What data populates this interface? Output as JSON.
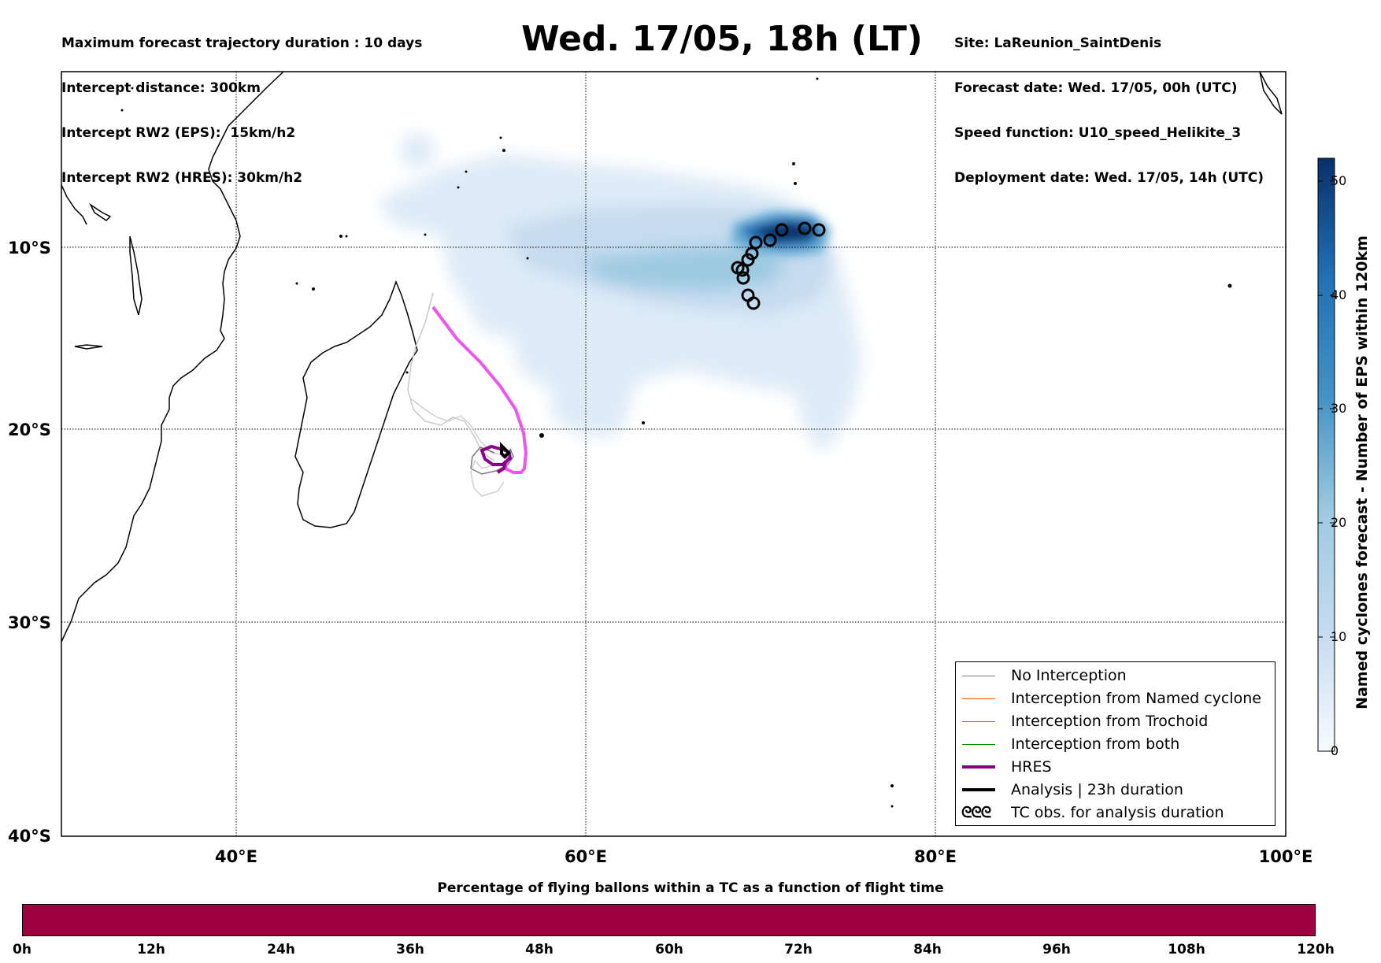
{
  "header": {
    "left_lines": [
      "Maximum forecast trajectory duration : 10 days",
      "Intercept distance: 300km",
      "Intercept RW2 (EPS):  15km/h2",
      "Intercept RW2 (HRES): 30km/h2"
    ],
    "title": "Wed. 17/05, 18h (LT)",
    "right_lines": [
      "Site: LaReunion_SaintDenis",
      "Forecast date: Wed. 17/05, 00h (UTC)",
      "Speed function: U10_speed_Helikite_3",
      "Deployment date: Wed. 17/05, 14h (UTC)"
    ]
  },
  "map": {
    "lon_range": [
      30,
      100
    ],
    "lat_range": [
      -40,
      0
    ],
    "lat_labels": [
      "10°S",
      "20°S",
      "30°S",
      "40°S"
    ],
    "lon_labels": [
      "40°E",
      "60°E",
      "80°E",
      "100°E"
    ],
    "density_color": "#08306b"
  },
  "legend": {
    "items": [
      {
        "label": "No Interception",
        "color": "#808080",
        "width": 1.3,
        "glyph": ""
      },
      {
        "label": "Interception from Named cyclone",
        "color": "#ff4500",
        "width": 1.3,
        "glyph": ""
      },
      {
        "label": "Interception from Trochoid",
        "color": "#808000",
        "width": 1.3,
        "glyph": ""
      },
      {
        "label": "Interception from both",
        "color": "#008000",
        "width": 1.3,
        "glyph": ""
      },
      {
        "label": "HRES",
        "color": "#800080",
        "width": 4,
        "glyph": ""
      },
      {
        "label": "Analysis | 23h duration",
        "color": "#000000",
        "width": 4,
        "glyph": ""
      },
      {
        "label": "TC obs. for analysis duration",
        "color": "#000000",
        "width": 0,
        "glyph": "ᘓᘓᘓ"
      }
    ]
  },
  "colorbar": {
    "title": "Named cyclones forecast - Number of EPS within 120km",
    "ticks": [
      "0",
      "10",
      "20",
      "30",
      "40",
      "50"
    ],
    "min": 0,
    "max": 52,
    "color_low": "#deebf7",
    "color_high": "#08306b"
  },
  "timebar": {
    "title": "Percentage of flying ballons within a TC as a function of flight time",
    "labels": [
      "0h",
      "12h",
      "24h",
      "36h",
      "48h",
      "60h",
      "72h",
      "84h",
      "96h",
      "108h",
      "120h"
    ],
    "color": "#9e0040"
  }
}
